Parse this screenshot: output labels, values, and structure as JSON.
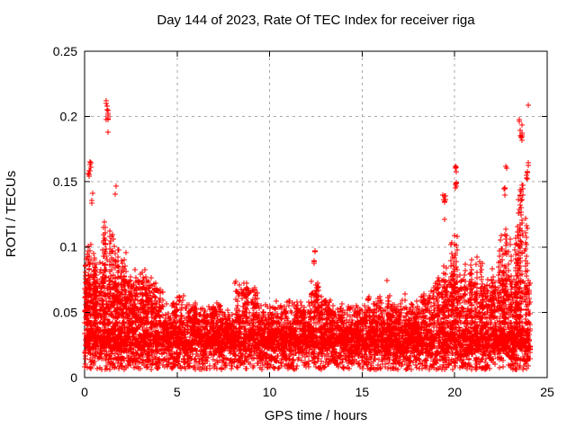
{
  "chart_data": {
    "type": "scatter",
    "title": "Day 144 of 2023, Rate Of TEC Index for receiver riga",
    "xlabel": "GPS time / hours",
    "ylabel": "ROTI / TECUs",
    "xlim": [
      0,
      25
    ],
    "ylim": [
      0,
      0.25
    ],
    "xticks": [
      "0",
      "5",
      "10",
      "15",
      "20",
      "25"
    ],
    "yticks": [
      "0",
      "0.05",
      "0.1",
      "0.15",
      "0.2",
      "0.25"
    ],
    "grid": true,
    "legend": "none",
    "marker": "plus",
    "colors": {
      "points": "#ff0000",
      "grid": "#a8a8a8",
      "axis": "#000000",
      "background": "#ffffff",
      "text": "#000000"
    },
    "x_data_range": [
      0,
      24.08
    ],
    "baseline_band": {
      "y_min": 0.006,
      "y_core_low": 0.012,
      "y_core_high": 0.04,
      "y_max": 0.057,
      "points": 6200
    },
    "spike_envelope": [
      [
        0.0,
        0.3,
        0.11,
        5
      ],
      [
        0.3,
        0.6,
        0.1,
        5
      ],
      [
        0.6,
        1.0,
        0.095,
        5
      ],
      [
        1.0,
        1.5,
        0.125,
        6
      ],
      [
        1.5,
        1.9,
        0.12,
        5
      ],
      [
        1.9,
        2.3,
        0.1,
        5
      ],
      [
        2.3,
        2.8,
        0.092,
        5
      ],
      [
        2.8,
        3.3,
        0.088,
        5
      ],
      [
        3.3,
        3.8,
        0.082,
        4
      ],
      [
        3.8,
        4.3,
        0.075,
        4
      ],
      [
        4.3,
        4.9,
        0.062,
        3
      ],
      [
        4.9,
        5.5,
        0.068,
        3
      ],
      [
        5.5,
        6.1,
        0.062,
        3
      ],
      [
        6.1,
        6.7,
        0.058,
        3
      ],
      [
        6.7,
        7.4,
        0.062,
        3
      ],
      [
        7.4,
        8.1,
        0.056,
        3
      ],
      [
        8.1,
        8.7,
        0.081,
        3
      ],
      [
        8.7,
        9.4,
        0.075,
        4
      ],
      [
        9.4,
        10.1,
        0.062,
        3
      ],
      [
        10.1,
        10.9,
        0.06,
        3
      ],
      [
        10.9,
        11.7,
        0.065,
        3
      ],
      [
        11.7,
        12.2,
        0.062,
        2
      ],
      [
        12.2,
        12.7,
        0.082,
        3
      ],
      [
        12.7,
        13.3,
        0.065,
        3
      ],
      [
        13.3,
        14.0,
        0.062,
        3
      ],
      [
        14.0,
        14.8,
        0.06,
        3
      ],
      [
        14.8,
        15.3,
        0.057,
        2
      ],
      [
        15.3,
        15.8,
        0.068,
        2
      ],
      [
        15.8,
        16.6,
        0.067,
        3
      ],
      [
        16.6,
        17.4,
        0.065,
        3
      ],
      [
        17.4,
        18.2,
        0.062,
        3
      ],
      [
        18.2,
        18.8,
        0.072,
        3
      ],
      [
        18.8,
        19.3,
        0.081,
        3
      ],
      [
        19.3,
        19.8,
        0.09,
        4
      ],
      [
        19.8,
        20.3,
        0.118,
        5
      ],
      [
        20.3,
        21.0,
        0.1,
        5
      ],
      [
        21.0,
        21.6,
        0.096,
        4
      ],
      [
        21.6,
        22.2,
        0.09,
        4
      ],
      [
        22.2,
        22.9,
        0.13,
        5
      ],
      [
        22.9,
        23.4,
        0.12,
        5
      ],
      [
        23.4,
        24.08,
        0.148,
        6
      ]
    ],
    "outlier_clusters": [
      [
        0.27,
        0.06,
        0.149,
        0.166,
        9
      ],
      [
        0.42,
        0.03,
        0.131,
        0.146,
        3
      ],
      [
        1.22,
        0.06,
        0.188,
        0.215,
        13
      ],
      [
        1.68,
        0.02,
        0.14,
        0.148,
        2
      ],
      [
        12.42,
        0.03,
        0.085,
        0.101,
        5
      ],
      [
        16.35,
        0.02,
        0.073,
        0.076,
        1
      ],
      [
        17.3,
        0.02,
        0.064,
        0.066,
        1
      ],
      [
        19.45,
        0.08,
        0.134,
        0.14,
        7
      ],
      [
        19.45,
        0.02,
        0.121,
        0.123,
        1
      ],
      [
        20.07,
        0.04,
        0.143,
        0.163,
        9
      ],
      [
        22.7,
        0.08,
        0.138,
        0.146,
        4
      ],
      [
        22.78,
        0.03,
        0.158,
        0.163,
        2
      ],
      [
        23.6,
        0.1,
        0.178,
        0.203,
        10
      ],
      [
        23.65,
        0.06,
        0.136,
        0.148,
        5
      ],
      [
        23.95,
        0.06,
        0.152,
        0.168,
        7
      ],
      [
        24.0,
        0.04,
        0.205,
        0.212,
        2
      ]
    ],
    "seed": 144
  }
}
